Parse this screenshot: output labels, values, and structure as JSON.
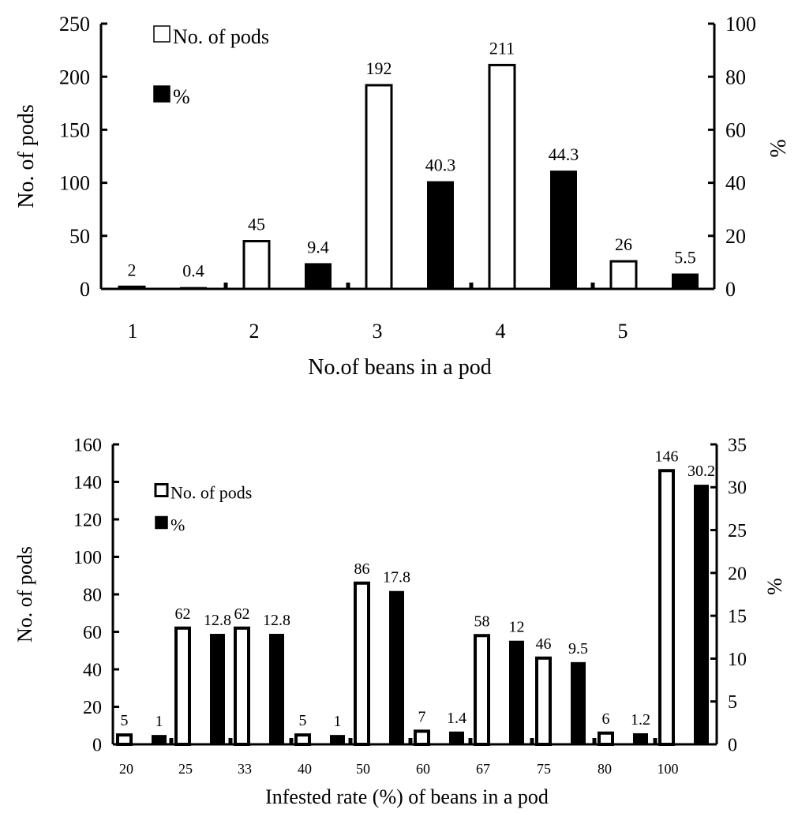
{
  "chart_data": [
    {
      "type": "bar",
      "title": "",
      "xlabel": "No.of beans in a pod",
      "ylabel": "No. of pods",
      "y2label": "%",
      "categories": [
        "1",
        "2",
        "3",
        "4",
        "5"
      ],
      "ylim": [
        0,
        250
      ],
      "y2lim": [
        0,
        100
      ],
      "yticks": [
        "0",
        "50",
        "100",
        "150",
        "200",
        "250"
      ],
      "y2ticks": [
        "0",
        "20",
        "40",
        "60",
        "80",
        "100"
      ],
      "legend_position": "top-left",
      "grid": false,
      "series": [
        {
          "name": "No. of pods",
          "axis": "left",
          "color": "#ffffff",
          "values": [
            2,
            45,
            192,
            211,
            26
          ],
          "labels": [
            "2",
            "45",
            "192",
            "211",
            "26"
          ]
        },
        {
          "name": "%",
          "axis": "right",
          "color": "#000000",
          "values": [
            0.4,
            9.4,
            40.3,
            44.3,
            5.5
          ],
          "labels": [
            "0.4",
            "9.4",
            "40.3",
            "44.3",
            "5.5"
          ]
        }
      ]
    },
    {
      "type": "bar",
      "title": "",
      "xlabel": "Infested rate (%) of beans in a pod",
      "ylabel": "No. of pods",
      "y2label": "%",
      "categories": [
        "20",
        "25",
        "33",
        "40",
        "50",
        "60",
        "67",
        "75",
        "80",
        "100"
      ],
      "ylim": [
        0,
        160
      ],
      "y2lim": [
        0,
        35
      ],
      "yticks": [
        "0",
        "20",
        "40",
        "60",
        "80",
        "100",
        "120",
        "140",
        "160"
      ],
      "y2ticks": [
        "0",
        "5",
        "10",
        "15",
        "20",
        "25",
        "30",
        "35"
      ],
      "legend_position": "top-left",
      "grid": false,
      "series": [
        {
          "name": "No. of pods",
          "axis": "left",
          "color": "#ffffff",
          "values": [
            5,
            62,
            62,
            5,
            86,
            7,
            58,
            46,
            6,
            146
          ],
          "labels": [
            "5",
            "62",
            "62",
            "5",
            "86",
            "7",
            "58",
            "46",
            "6",
            "146"
          ]
        },
        {
          "name": "%",
          "axis": "right",
          "color": "#000000",
          "values": [
            1,
            12.8,
            12.8,
            1,
            17.8,
            1.4,
            12,
            9.5,
            1.2,
            30.2
          ],
          "labels": [
            "1",
            "12.8",
            "12.8",
            "1",
            "17.8",
            "1.4",
            "12",
            "9.5",
            "1.2",
            "30.2"
          ]
        }
      ]
    }
  ]
}
